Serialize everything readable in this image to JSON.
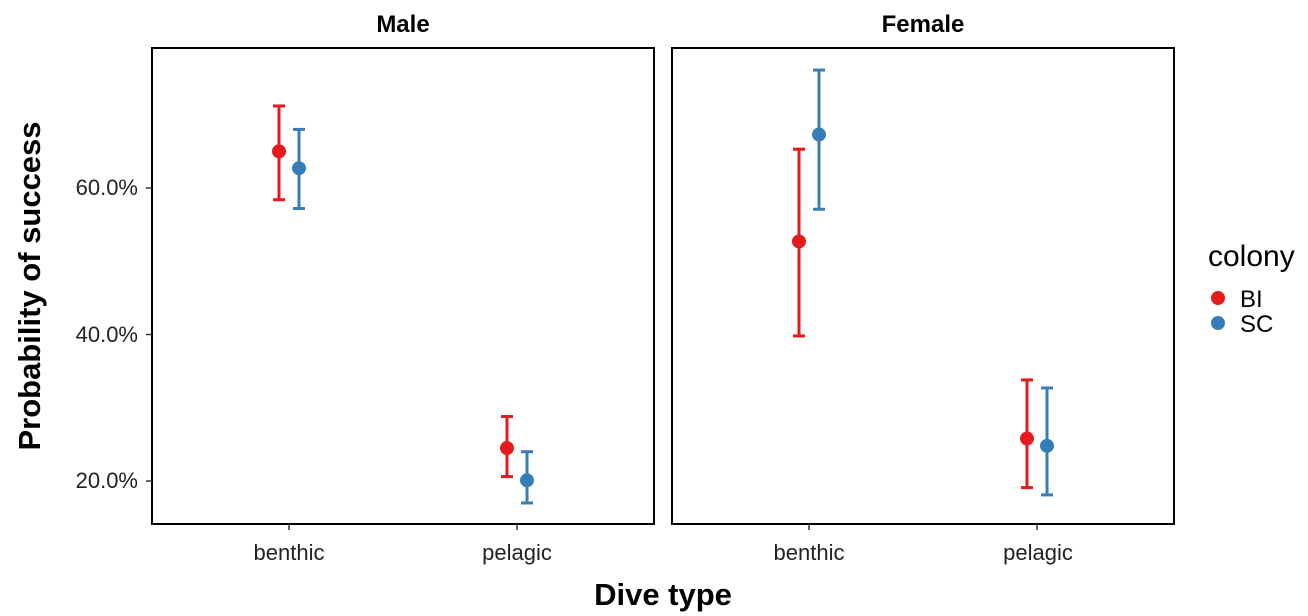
{
  "chart_data": {
    "type": "scatter",
    "xlabel": "Dive type",
    "ylabel": "Probability of success",
    "ylim": [
      0.14,
      0.8
    ],
    "y_ticks": [
      0.2,
      0.4,
      0.6
    ],
    "y_tick_labels": [
      "20.0%",
      "40.0%",
      "60.0%"
    ],
    "categories": [
      "benthic",
      "pelagic"
    ],
    "legend": {
      "title": "colony",
      "placement": "right",
      "entries": [
        {
          "name": "BI",
          "color": "#e41a1c"
        },
        {
          "name": "SC",
          "color": "#377eb8"
        }
      ]
    },
    "panels": [
      {
        "title": "Male",
        "series": [
          {
            "name": "BI",
            "color": "#e41a1c",
            "points": [
              {
                "x": "benthic",
                "y": 0.65,
                "ymin": 0.584,
                "ymax": 0.712
              },
              {
                "x": "pelagic",
                "y": 0.245,
                "ymin": 0.206,
                "ymax": 0.288
              }
            ]
          },
          {
            "name": "SC",
            "color": "#377eb8",
            "points": [
              {
                "x": "benthic",
                "y": 0.627,
                "ymin": 0.572,
                "ymax": 0.68
              },
              {
                "x": "pelagic",
                "y": 0.201,
                "ymin": 0.17,
                "ymax": 0.24
              }
            ]
          }
        ]
      },
      {
        "title": "Female",
        "series": [
          {
            "name": "BI",
            "color": "#e41a1c",
            "points": [
              {
                "x": "benthic",
                "y": 0.527,
                "ymin": 0.398,
                "ymax": 0.653
              },
              {
                "x": "pelagic",
                "y": 0.258,
                "ymin": 0.191,
                "ymax": 0.338
              }
            ]
          },
          {
            "name": "SC",
            "color": "#377eb8",
            "points": [
              {
                "x": "benthic",
                "y": 0.673,
                "ymin": 0.571,
                "ymax": 0.761
              },
              {
                "x": "pelagic",
                "y": 0.248,
                "ymin": 0.181,
                "ymax": 0.327
              }
            ]
          }
        ]
      }
    ]
  }
}
